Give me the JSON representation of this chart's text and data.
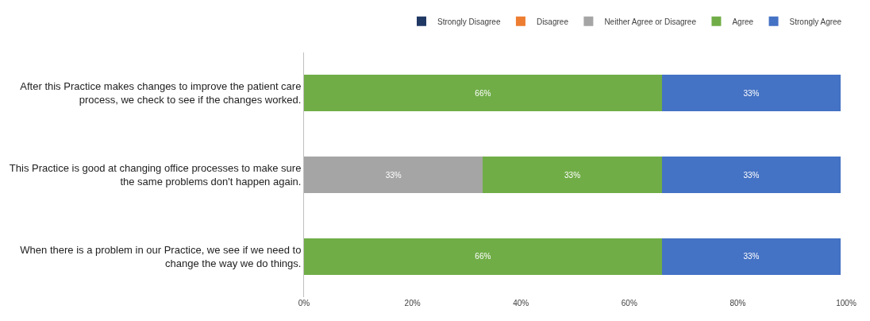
{
  "chart_data": {
    "type": "bar",
    "orientation": "horizontal",
    "stacked": true,
    "categories": [
      "After this Practice makes changes to improve the patient care process, we check to see if the changes worked.",
      "This Practice is good at changing office processes to make sure the same problems don't happen again.",
      "When there is a problem in our Practice, we see if we need to change the way we do things."
    ],
    "series": [
      {
        "name": "Strongly Disagree",
        "color": "#203864",
        "values": [
          0,
          0,
          0
        ],
        "value_labels": [
          null,
          null,
          null
        ]
      },
      {
        "name": "Disagree",
        "color": "#ed7d31",
        "values": [
          0,
          0,
          0
        ],
        "value_labels": [
          null,
          null,
          null
        ]
      },
      {
        "name": "Neither Agree or Disagree",
        "color": "#a5a5a5",
        "values": [
          0,
          33,
          0
        ],
        "value_labels": [
          null,
          "33%",
          null
        ]
      },
      {
        "name": "Agree",
        "color": "#70ad47",
        "values": [
          66,
          33,
          66
        ],
        "value_labels": [
          "66%",
          "33%",
          "66%"
        ]
      },
      {
        "name": "Strongly Agree",
        "color": "#4472c4",
        "values": [
          33,
          33,
          33
        ],
        "value_labels": [
          "33%",
          "33%",
          "33%"
        ]
      }
    ],
    "xlim": [
      0,
      100
    ],
    "xticks": [
      {
        "value": 0,
        "label": "0%"
      },
      {
        "value": 20,
        "label": "20%"
      },
      {
        "value": 40,
        "label": "40%"
      },
      {
        "value": 60,
        "label": "60%"
      },
      {
        "value": 80,
        "label": "80%"
      },
      {
        "value": 100,
        "label": "100%"
      }
    ],
    "grid": false,
    "legend": "top right"
  }
}
